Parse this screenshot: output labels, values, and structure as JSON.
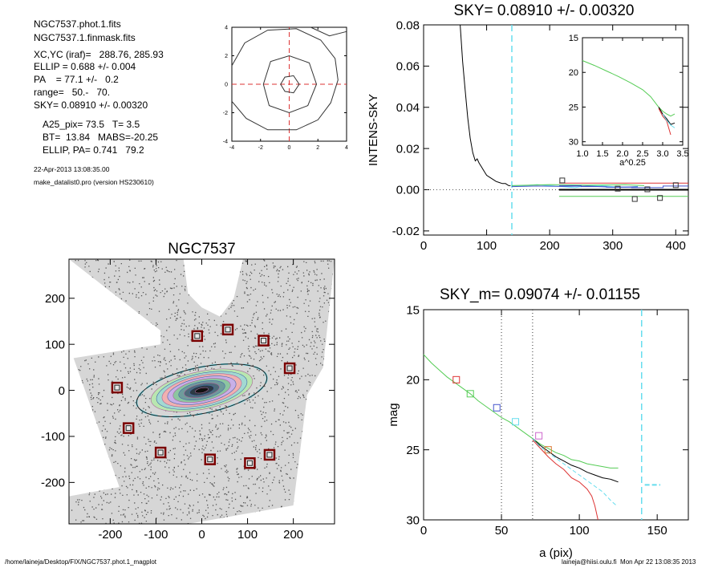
{
  "info": {
    "file1": "NGC7537.phot.1.fits",
    "file2": "NGC7537.1.finmask.fits",
    "xc_yc": "XC,YC (iraf)=   288.76, 285.93",
    "ellip": "ELLIP = 0.688 +/- 0.004",
    "pa": "PA    = 77.1 +/-   0.2",
    "range": "range=   50.-   70.",
    "sky": "SKY= 0.08910 +/- 0.00320",
    "a25": "A25_pix= 73.5   T= 3.5",
    "bt": "BT=  13.84   MABS=-20.25",
    "ellip_pa": "ELLIP, PA= 0.741   79.2",
    "date": "22-Apr-2013 13:08:35.00",
    "program": "make_datalist0.pro (version HS230610)"
  },
  "footer": {
    "path": "/home/laineja/Desktop/FIX/NGC7537.phot.1_magplot",
    "user": "laineja@hiisi.oulu.fi  Mon Apr 22 13:08:35 2013"
  },
  "colors": {
    "cyan": "#66ddee",
    "green": "#55cc55",
    "red": "#dd3333",
    "blue": "#4455cc",
    "magenta": "#cc66cc",
    "orange": "#dd7733",
    "box_red": "#7a0000"
  },
  "chart_data": [
    {
      "id": "contour",
      "type": "line",
      "title": "",
      "xlim": [
        -4,
        4
      ],
      "ylim": [
        -4,
        4
      ],
      "x_ticks": [
        -4,
        -2,
        0,
        2,
        4
      ],
      "y_ticks": [
        -4,
        -2,
        0,
        2,
        4
      ],
      "xtick_labels": [
        "-4",
        "-2",
        "0",
        "2",
        "4"
      ],
      "ytick_labels": [
        "-4",
        "-2",
        "0",
        "2",
        "4"
      ],
      "crosshair": [
        0,
        0
      ],
      "contours": [
        [
          [
            -0.6,
            0
          ],
          [
            -0.3,
            0.5
          ],
          [
            0.3,
            0.6
          ],
          [
            0.7,
            0
          ],
          [
            0.3,
            -0.6
          ],
          [
            -0.3,
            -0.5
          ]
        ],
        [
          [
            -1.8,
            0
          ],
          [
            -1.3,
            1.6
          ],
          [
            0,
            2.0
          ],
          [
            1.4,
            1.5
          ],
          [
            1.9,
            0
          ],
          [
            1.3,
            -1.5
          ],
          [
            0,
            -2.0
          ],
          [
            -1.4,
            -1.5
          ]
        ],
        [
          [
            -4,
            1.3
          ],
          [
            -3.1,
            2.9
          ],
          [
            -1.5,
            3.8
          ],
          [
            0.5,
            3.9
          ],
          [
            2.2,
            3.1
          ],
          [
            3.2,
            1.8
          ],
          [
            3.4,
            0.3
          ],
          [
            2.9,
            -1.3
          ],
          [
            2.0,
            -2.5
          ],
          [
            0.5,
            -3.2
          ],
          [
            -1.5,
            -3.2
          ],
          [
            -3.0,
            -2.4
          ],
          [
            -4,
            -1.2
          ]
        ],
        [
          [
            1.5,
            4
          ],
          [
            2.8,
            3.4
          ],
          [
            4,
            3.7
          ]
        ]
      ]
    },
    {
      "id": "intens_sky",
      "type": "line",
      "title": "SKY= 0.08910 +/- 0.00320",
      "xlabel": "",
      "ylabel": "INTENS-SKY",
      "xlim": [
        0,
        420
      ],
      "ylim": [
        -0.022,
        0.08
      ],
      "x_ticks": [
        0,
        100,
        200,
        300,
        400
      ],
      "y_ticks": [
        -0.02,
        0.0,
        0.02,
        0.04,
        0.06,
        0.08
      ],
      "xtick_labels": [
        "0",
        "100",
        "200",
        "300",
        "400"
      ],
      "ytick_labels": [
        "-0.02",
        "0.00",
        "0.02",
        "0.04",
        "0.06",
        "0.08"
      ],
      "zero_line": 0,
      "sky_radius": 140,
      "series": [
        {
          "color": "black",
          "x": [
            58,
            62,
            66,
            70,
            74,
            78,
            82,
            85,
            88,
            92,
            96,
            100,
            105,
            110,
            115,
            120,
            125,
            130,
            135,
            138
          ],
          "y": [
            0.08,
            0.062,
            0.048,
            0.035,
            0.025,
            0.018,
            0.014,
            0.015,
            0.013,
            0.011,
            0.009,
            0.007,
            0.006,
            0.005,
            0.004,
            0.0035,
            0.003,
            0.003,
            0.002,
            0.002
          ]
        },
        {
          "color": "cyan",
          "x": [
            140,
            160,
            180,
            200,
            220,
            240,
            260,
            280,
            300,
            320,
            340
          ],
          "y": [
            0.002,
            0.002,
            0.0025,
            0.002,
            0.0015,
            0.001,
            0.002,
            0.002,
            0.0015,
            0.0012,
            0.0016
          ]
        },
        {
          "color": "blue",
          "x": [
            140,
            180,
            220,
            260,
            300,
            340
          ],
          "y": [
            0.0015,
            0.0018,
            0.0016,
            0.0018,
            0.0012,
            0.0014
          ]
        },
        {
          "color": "green",
          "x": [
            140,
            200,
            260,
            320,
            350
          ],
          "y": [
            0.002,
            0.0025,
            0.0022,
            0.0024,
            0.002
          ]
        }
      ],
      "hlines": [
        {
          "color": "black",
          "y": 0.0,
          "x": [
            215,
            420
          ]
        },
        {
          "color": "red",
          "y": 0.0032,
          "x": [
            215,
            420
          ]
        },
        {
          "color": "green",
          "y": -0.0032,
          "x": [
            215,
            420
          ]
        }
      ],
      "steps_x": [
        215,
        250,
        290,
        330,
        380,
        420
      ],
      "steps_y": [
        0.002,
        0.0015,
        0.0012,
        0.001,
        0.0018
      ],
      "squares": [
        {
          "x": 220,
          "y": 0.0045
        },
        {
          "x": 308,
          "y": 0.0005
        },
        {
          "x": 335,
          "y": -0.0045
        },
        {
          "x": 355,
          "y": 0.0002
        },
        {
          "x": 375,
          "y": -0.004
        },
        {
          "x": 400,
          "y": 0.0022
        }
      ]
    },
    {
      "id": "inset",
      "type": "line",
      "title": "",
      "xlabel": "a^0.25",
      "ylabel": "",
      "xlim": [
        1.0,
        3.5
      ],
      "ylim": [
        30.5,
        15
      ],
      "x_ticks": [
        1.0,
        1.5,
        2.0,
        2.5,
        3.0,
        3.5
      ],
      "y_ticks": [
        15,
        20,
        25,
        30
      ],
      "xtick_labels": [
        "1.0",
        "1.5",
        "2.0",
        "2.5",
        "3.0",
        "3.5"
      ],
      "ytick_labels": [
        "15",
        "20",
        "25",
        "30"
      ],
      "series": [
        {
          "color": "green",
          "x": [
            1.0,
            1.3,
            1.6,
            1.9,
            2.2,
            2.5,
            2.7,
            2.9,
            3.0,
            3.1,
            3.2,
            3.3
          ],
          "y": [
            18.3,
            19.0,
            19.8,
            20.6,
            21.5,
            22.5,
            23.5,
            25.0,
            25.6,
            26.0,
            26.3,
            26.0
          ]
        },
        {
          "color": "black",
          "x": [
            2.9,
            3.0,
            3.1,
            3.2,
            3.3
          ],
          "y": [
            25.0,
            26.0,
            26.7,
            27.5,
            27.3
          ]
        },
        {
          "color": "red",
          "x": [
            2.9,
            3.0,
            3.1,
            3.15,
            3.2
          ],
          "y": [
            25.2,
            26.3,
            27.0,
            28.0,
            29.0
          ]
        },
        {
          "color": "cyan",
          "x": [
            3.0,
            3.1,
            3.2,
            3.3
          ],
          "y": [
            26.0,
            26.9,
            27.6,
            28.0
          ]
        }
      ]
    },
    {
      "id": "image",
      "type": "scatter",
      "title": "NGC7537",
      "xlim": [
        -290,
        290
      ],
      "ylim": [
        -290,
        285
      ],
      "x_ticks": [
        -200,
        -100,
        0,
        100,
        200
      ],
      "y_ticks": [
        -200,
        -100,
        0,
        100,
        200
      ],
      "xtick_labels": [
        "-200",
        "-100",
        "0",
        "100",
        "200"
      ],
      "ytick_labels": [
        "-200",
        "-100",
        "0",
        "100",
        "200"
      ],
      "ellipse": {
        "cx": 0,
        "cy": 0,
        "a": 145,
        "b": 50,
        "angle_deg": 12
      },
      "boxes": [
        {
          "x": -10,
          "y": 118
        },
        {
          "x": 57,
          "y": 132
        },
        {
          "x": 135,
          "y": 108
        },
        {
          "x": 192,
          "y": 48
        },
        {
          "x": -185,
          "y": 6
        },
        {
          "x": -160,
          "y": -82
        },
        {
          "x": -90,
          "y": -135
        },
        {
          "x": 18,
          "y": -150
        },
        {
          "x": 105,
          "y": -158
        },
        {
          "x": 148,
          "y": -140
        }
      ]
    },
    {
      "id": "mag",
      "type": "line",
      "title": "SKY_m=  0.09074 +/- 0.01155",
      "xlabel": "a (pix)",
      "ylabel": "mag",
      "xlim": [
        0,
        170
      ],
      "ylim": [
        30,
        15
      ],
      "x_ticks": [
        0,
        50,
        100,
        150
      ],
      "y_ticks": [
        15,
        20,
        25,
        30
      ],
      "xtick_labels": [
        "0",
        "50",
        "100",
        "150"
      ],
      "ytick_labels": [
        "15",
        "20",
        "25",
        "30"
      ],
      "range_lines": [
        50,
        70
      ],
      "sky_radius": 140,
      "sky_mark": {
        "x": [
          142,
          152
        ],
        "y": 27.5
      },
      "series": [
        {
          "color": "green",
          "x": [
            0,
            5,
            10,
            15,
            20,
            25,
            30,
            35,
            40,
            45,
            50,
            55,
            60,
            65,
            70,
            75,
            80,
            85,
            90,
            95,
            100,
            105,
            110,
            115,
            120,
            125
          ],
          "y": [
            18.2,
            18.8,
            19.3,
            19.8,
            20.2,
            20.6,
            21.0,
            21.5,
            21.9,
            22.3,
            22.7,
            23.0,
            23.4,
            23.8,
            24.2,
            24.6,
            24.9,
            25.2,
            25.4,
            25.7,
            25.8,
            26.0,
            26.1,
            26.2,
            26.3,
            26.3
          ]
        },
        {
          "color": "black",
          "x": [
            70,
            75,
            80,
            85,
            90,
            95,
            100,
            105,
            110,
            115,
            120,
            125
          ],
          "y": [
            24.2,
            24.7,
            25.1,
            25.5,
            25.8,
            26.1,
            26.3,
            26.6,
            26.8,
            27.0,
            27.1,
            27.3
          ]
        },
        {
          "color": "red",
          "x": [
            70,
            75,
            80,
            85,
            90,
            95,
            100,
            105,
            108,
            110,
            112
          ],
          "y": [
            24.3,
            24.9,
            25.5,
            26.0,
            26.4,
            27.0,
            27.3,
            27.8,
            28.3,
            29.0,
            30.0
          ]
        },
        {
          "color": "cyan",
          "x": [
            70,
            75,
            80,
            85,
            90,
            95,
            100,
            105,
            110,
            115,
            120,
            124
          ],
          "y": [
            24.2,
            24.8,
            25.2,
            25.6,
            26.0,
            26.4,
            26.8,
            27.2,
            27.6,
            28.0,
            28.6,
            29.0
          ]
        }
      ],
      "squares": [
        {
          "x": 21,
          "y": 20.0,
          "color": "red"
        },
        {
          "x": 30,
          "y": 21.0,
          "color": "green"
        },
        {
          "x": 47,
          "y": 22.0,
          "color": "blue"
        },
        {
          "x": 59,
          "y": 23.0,
          "color": "cyan"
        },
        {
          "x": 74,
          "y": 24.0,
          "color": "magenta"
        },
        {
          "x": 80,
          "y": 25.0,
          "color": "orange"
        }
      ]
    }
  ]
}
